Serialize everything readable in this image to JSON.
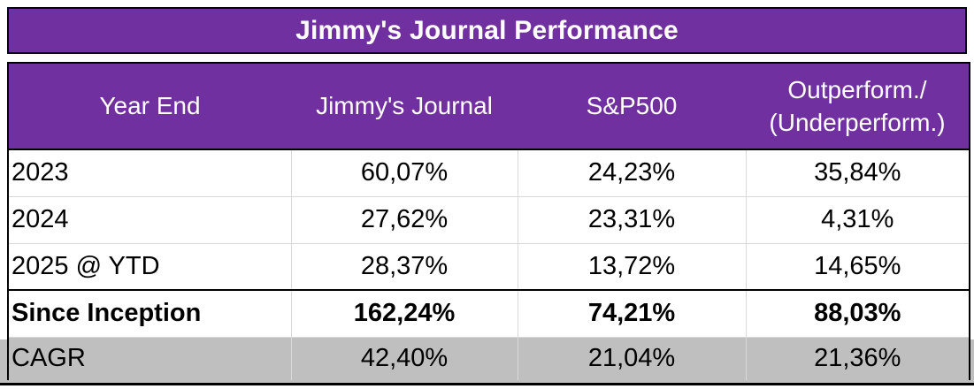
{
  "title": "Jimmy's Journal Performance",
  "table": {
    "header": {
      "col1": "Year End",
      "col2": "Jimmy's Journal",
      "col3": "S&P500",
      "col4_line1": "Outperform./",
      "col4_line2": "(Underperform.)"
    },
    "rows": [
      {
        "label": "2023",
        "jimmys_journal": "60,07%",
        "sp500": "24,23%",
        "outperformance": "35,84%"
      },
      {
        "label": "2024",
        "jimmys_journal": "27,62%",
        "sp500": "23,31%",
        "outperformance": "4,31%"
      },
      {
        "label": "2025 @ YTD",
        "jimmys_journal": "28,37%",
        "sp500": "13,72%",
        "outperformance": "14,65%"
      },
      {
        "label": "Since Inception",
        "jimmys_journal": "162,24%",
        "sp500": "74,21%",
        "outperformance": "88,03%"
      },
      {
        "label": "CAGR",
        "jimmys_journal": "42,40%",
        "sp500": "21,04%",
        "outperformance": "21,36%"
      }
    ]
  },
  "colors": {
    "header_purple": "#7030A0",
    "cagr_row_gray": "#BFBFBF",
    "grid_line": "#D9D9D9",
    "border_black": "#000000",
    "header_text": "#FFFFFF",
    "body_text": "#000000"
  }
}
